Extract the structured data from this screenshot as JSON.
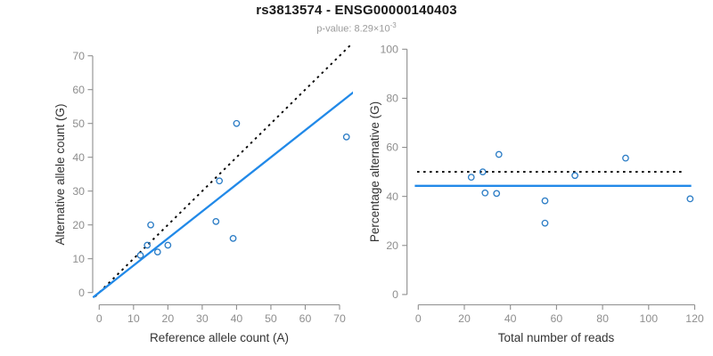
{
  "header": {
    "title": "rs3813574 - ENSG00000140403",
    "pvalue_prefix": "p-value: 8.29×10",
    "pvalue_exponent": "-3"
  },
  "colors": {
    "point_stroke": "#2e7ec6",
    "blue_line": "#2189e8",
    "dotted_line": "#000000",
    "axis": "#8e8e8e",
    "tick_label": "#8e8e8e",
    "axis_title": "#333333",
    "background": "#ffffff"
  },
  "chart_data": [
    {
      "type": "scatter",
      "panel": "allele-counts",
      "xlabel": "Reference allele count (A)",
      "ylabel": "Alternative allele count (G)",
      "xlim": [
        0,
        72
      ],
      "ylim": [
        0,
        72
      ],
      "xticks": [
        0,
        10,
        20,
        30,
        40,
        50,
        60,
        70
      ],
      "yticks": [
        0,
        10,
        20,
        30,
        40,
        50,
        60,
        70
      ],
      "grid": false,
      "points": [
        [
          40,
          50
        ],
        [
          72,
          46
        ],
        [
          35,
          33
        ],
        [
          15,
          20
        ],
        [
          34,
          21
        ],
        [
          39,
          16
        ],
        [
          14,
          14
        ],
        [
          20,
          14
        ],
        [
          17,
          12
        ],
        [
          12,
          11
        ]
      ],
      "lines": [
        {
          "name": "identity-line",
          "style": "dotted",
          "color_key": "dotted_line",
          "slope": 1,
          "intercept": 0,
          "xspan": [
            -1.2,
            73.8
          ]
        },
        {
          "name": "regression-line",
          "style": "solid",
          "color_key": "blue_line",
          "slope": 0.8,
          "intercept": 0,
          "xspan": [
            -1.8,
            74.5
          ]
        }
      ]
    },
    {
      "type": "scatter",
      "panel": "percentage-vs-coverage",
      "xlabel": "Total number of reads",
      "ylabel": "Percentage alternative (G)",
      "xlim": [
        0,
        120
      ],
      "ylim": [
        0,
        100
      ],
      "xticks": [
        0,
        20,
        40,
        60,
        80,
        100,
        120
      ],
      "yticks": [
        0,
        20,
        40,
        60,
        80,
        100
      ],
      "grid": false,
      "points": [
        [
          35,
          57.1
        ],
        [
          90,
          55.6
        ],
        [
          28,
          50
        ],
        [
          23,
          47.8
        ],
        [
          68,
          48.5
        ],
        [
          29,
          41.4
        ],
        [
          34,
          41.2
        ],
        [
          55,
          38.2
        ],
        [
          118,
          39
        ],
        [
          55,
          29.1
        ]
      ],
      "lines": [
        {
          "name": "null-50pct-line",
          "style": "dotted",
          "color_key": "dotted_line",
          "slope": 0,
          "intercept": 50,
          "xspan": [
            -0.5,
            115
          ]
        },
        {
          "name": "mean-pct-line",
          "style": "solid",
          "color_key": "blue_line",
          "slope": 0,
          "intercept": 44.3,
          "xspan": [
            -1.5,
            118.5
          ]
        }
      ]
    }
  ]
}
